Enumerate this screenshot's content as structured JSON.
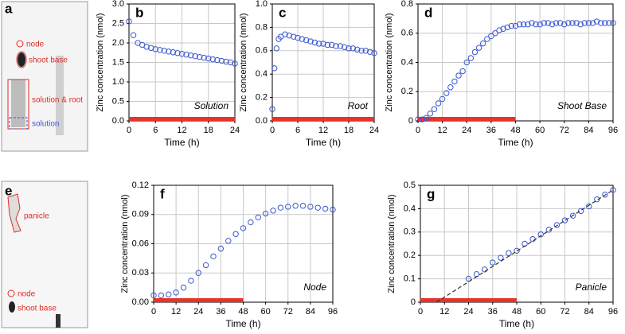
{
  "images": [
    {
      "letter": "a",
      "labels": [
        "node",
        "shoot base",
        "solution & root",
        "solution"
      ]
    },
    {
      "letter": "e",
      "labels": [
        "panicle",
        "node",
        "shoot base"
      ]
    }
  ],
  "chart_data": [
    {
      "type": "scatter",
      "letter": "b",
      "annotation": "Solution",
      "x_label": "Time (h)",
      "y_label": "Zinc concentration (nmol)",
      "color": "#3a58d0",
      "grid": true,
      "highlight": [
        0,
        24
      ],
      "highlight_color": "#e8322a",
      "xlim": [
        0,
        24
      ],
      "xticks": [
        0,
        6,
        12,
        18,
        24
      ],
      "ylim": [
        0,
        3
      ],
      "yticks": [
        {
          "value": 0,
          "label": "0.0"
        },
        0.5,
        {
          "value": 1,
          "label": "1.0"
        },
        1.5,
        {
          "value": 2,
          "label": "2.0"
        },
        2.5,
        {
          "value": 3,
          "label": "3.0"
        }
      ],
      "x": [
        0,
        1,
        2,
        3,
        4,
        5,
        6,
        7,
        8,
        9,
        10,
        11,
        12,
        13,
        14,
        15,
        16,
        17,
        18,
        19,
        20,
        21,
        22,
        23,
        24
      ],
      "values": [
        2.55,
        2.2,
        2.0,
        1.95,
        1.9,
        1.87,
        1.84,
        1.82,
        1.8,
        1.78,
        1.76,
        1.74,
        1.72,
        1.7,
        1.68,
        1.66,
        1.64,
        1.62,
        1.6,
        1.58,
        1.56,
        1.54,
        1.52,
        1.5,
        1.47
      ]
    },
    {
      "type": "scatter",
      "letter": "c",
      "annotation": "Root",
      "x_label": "Time (h)",
      "y_label": "Zinc concentration (nmol)",
      "color": "#3a58d0",
      "grid": true,
      "highlight": [
        0,
        24
      ],
      "highlight_color": "#e8322a",
      "xlim": [
        0,
        24
      ],
      "xticks": [
        0,
        6,
        12,
        18,
        24
      ],
      "ylim": [
        0,
        1
      ],
      "yticks": [
        {
          "value": 0,
          "label": "0.0"
        },
        0.2,
        0.4,
        0.6,
        0.8,
        {
          "value": 1,
          "label": "1.0"
        }
      ],
      "x": [
        0,
        0.5,
        1,
        1.5,
        2,
        3,
        4,
        5,
        6,
        7,
        8,
        9,
        10,
        11,
        12,
        13,
        14,
        15,
        16,
        17,
        18,
        19,
        20,
        21,
        22,
        23,
        24
      ],
      "values": [
        0.1,
        0.45,
        0.62,
        0.7,
        0.72,
        0.74,
        0.73,
        0.72,
        0.71,
        0.7,
        0.69,
        0.68,
        0.67,
        0.66,
        0.66,
        0.65,
        0.65,
        0.64,
        0.64,
        0.63,
        0.62,
        0.62,
        0.61,
        0.6,
        0.6,
        0.59,
        0.58
      ]
    },
    {
      "type": "scatter",
      "letter": "d",
      "annotation": "Shoot Base",
      "x_label": "Time (h)",
      "y_label": "Zinc concentration (nmol)",
      "color": "#3a58d0",
      "grid": true,
      "highlight": [
        0,
        48
      ],
      "highlight_color": "#e8322a",
      "xlim": [
        0,
        96
      ],
      "xticks": [
        0,
        12,
        24,
        36,
        48,
        60,
        72,
        84,
        96
      ],
      "ylim": [
        0,
        0.8
      ],
      "yticks": [
        0,
        0.2,
        0.4,
        0.6,
        0.8
      ],
      "x": [
        0,
        2,
        4,
        6,
        8,
        10,
        12,
        14,
        16,
        18,
        20,
        22,
        24,
        26,
        28,
        30,
        32,
        34,
        36,
        38,
        40,
        42,
        44,
        46,
        48,
        50,
        52,
        54,
        56,
        58,
        60,
        62,
        64,
        66,
        68,
        70,
        72,
        74,
        76,
        78,
        80,
        82,
        84,
        86,
        88,
        90,
        92,
        94,
        96
      ],
      "values": [
        0.01,
        0.01,
        0.02,
        0.05,
        0.08,
        0.12,
        0.15,
        0.19,
        0.23,
        0.27,
        0.31,
        0.34,
        0.4,
        0.43,
        0.47,
        0.5,
        0.53,
        0.56,
        0.58,
        0.6,
        0.62,
        0.63,
        0.64,
        0.65,
        0.65,
        0.66,
        0.66,
        0.66,
        0.67,
        0.66,
        0.66,
        0.67,
        0.67,
        0.66,
        0.67,
        0.67,
        0.66,
        0.67,
        0.67,
        0.67,
        0.66,
        0.67,
        0.67,
        0.67,
        0.68,
        0.67,
        0.67,
        0.67,
        0.67
      ]
    },
    {
      "type": "scatter",
      "letter": "f",
      "annotation": "Node",
      "x_label": "Time (h)",
      "y_label": "Zinc concentration (nmol)",
      "color": "#3a58d0",
      "grid": true,
      "highlight": [
        0,
        48
      ],
      "highlight_color": "#e8322a",
      "xlim": [
        0,
        96
      ],
      "xticks": [
        0,
        12,
        24,
        36,
        48,
        60,
        72,
        84,
        96
      ],
      "ylim": [
        0,
        0.12
      ],
      "yticks": [
        {
          "value": 0,
          "label": "0.00"
        },
        {
          "value": 0.03,
          "label": "0.03"
        },
        {
          "value": 0.06,
          "label": "0.06"
        },
        {
          "value": 0.09,
          "label": "0.09"
        },
        {
          "value": 0.12,
          "label": "0.12"
        }
      ],
      "x": [
        0,
        4,
        8,
        12,
        16,
        20,
        24,
        28,
        32,
        36,
        40,
        44,
        48,
        52,
        56,
        60,
        64,
        68,
        72,
        76,
        80,
        84,
        88,
        92,
        96
      ],
      "values": [
        0.007,
        0.007,
        0.008,
        0.01,
        0.015,
        0.022,
        0.03,
        0.038,
        0.047,
        0.055,
        0.063,
        0.07,
        0.076,
        0.082,
        0.087,
        0.091,
        0.094,
        0.097,
        0.098,
        0.099,
        0.099,
        0.098,
        0.097,
        0.096,
        0.095
      ]
    },
    {
      "type": "scatter",
      "letter": "g",
      "annotation": "Panicle",
      "x_label": "Time (h)",
      "y_label": "Zinc concentration (nmol)",
      "color": "#3a58d0",
      "grid": true,
      "highlight": [
        0,
        48
      ],
      "highlight_color": "#e8322a",
      "xlim": [
        0,
        96
      ],
      "xticks": [
        0,
        12,
        24,
        36,
        48,
        60,
        72,
        84,
        96
      ],
      "ylim": [
        0,
        0.5
      ],
      "yticks": [
        0,
        0.1,
        0.2,
        0.3,
        0.4,
        0.5
      ],
      "trend": {
        "x": [
          8,
          96
        ],
        "y": [
          0,
          0.48
        ]
      },
      "x": [
        24,
        28,
        32,
        36,
        40,
        44,
        48,
        52,
        56,
        60,
        64,
        68,
        72,
        76,
        80,
        84,
        88,
        92,
        96
      ],
      "values": [
        0.1,
        0.12,
        0.14,
        0.17,
        0.19,
        0.21,
        0.22,
        0.25,
        0.27,
        0.29,
        0.31,
        0.33,
        0.35,
        0.37,
        0.39,
        0.41,
        0.44,
        0.46,
        0.48
      ]
    }
  ]
}
